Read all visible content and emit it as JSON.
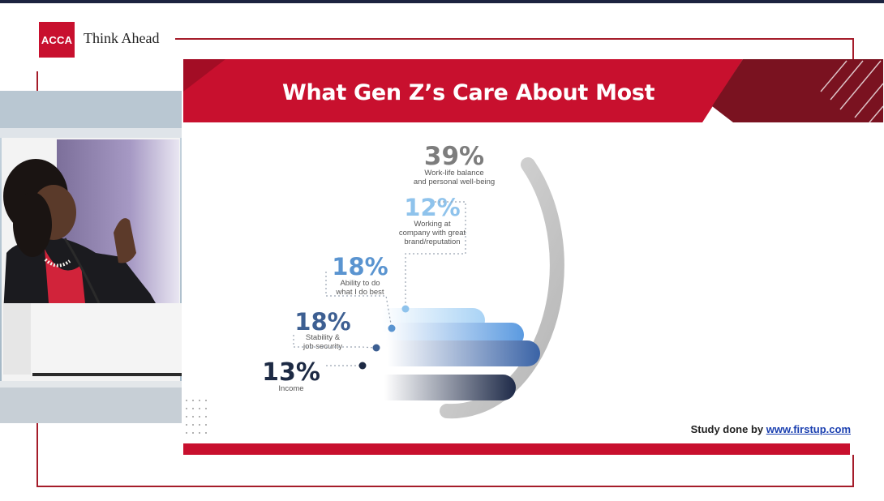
{
  "header": {
    "logo_text": "ACCA",
    "tagline": "Think Ahead"
  },
  "slide": {
    "title": "What Gen Z’s Care About Most",
    "credit_prefix": "Study done by",
    "credit_link": "www.firstup.com"
  },
  "colors": {
    "brand_red": "#c8102e",
    "frame_red": "#a51c2a",
    "dark_red": "#6b0f1a"
  },
  "chart_data": {
    "type": "radial-bar",
    "categories": [
      "Work-life balance and personal well-being",
      "Working at company with great brand/reputation",
      "Ability to do what I do best",
      "Stability & job security",
      "Income"
    ],
    "values": [
      39,
      12,
      18,
      18,
      13
    ],
    "labels": [
      {
        "value": "39%",
        "lines": [
          "Work-life balance",
          "and personal well-being"
        ],
        "color": "#7d7d7d"
      },
      {
        "value": "12%",
        "lines": [
          "Working at",
          "company with great",
          "brand/reputation"
        ],
        "color": "#8fc3ec"
      },
      {
        "value": "18%",
        "lines": [
          "Ability to do",
          "what I do best"
        ],
        "color": "#5a94d0"
      },
      {
        "value": "18%",
        "lines": [
          "Stability &",
          "job security"
        ],
        "color": "#3d5f92"
      },
      {
        "value": "13%",
        "lines": [
          "Income"
        ],
        "color": "#1d2a44"
      }
    ],
    "unit": "%"
  }
}
